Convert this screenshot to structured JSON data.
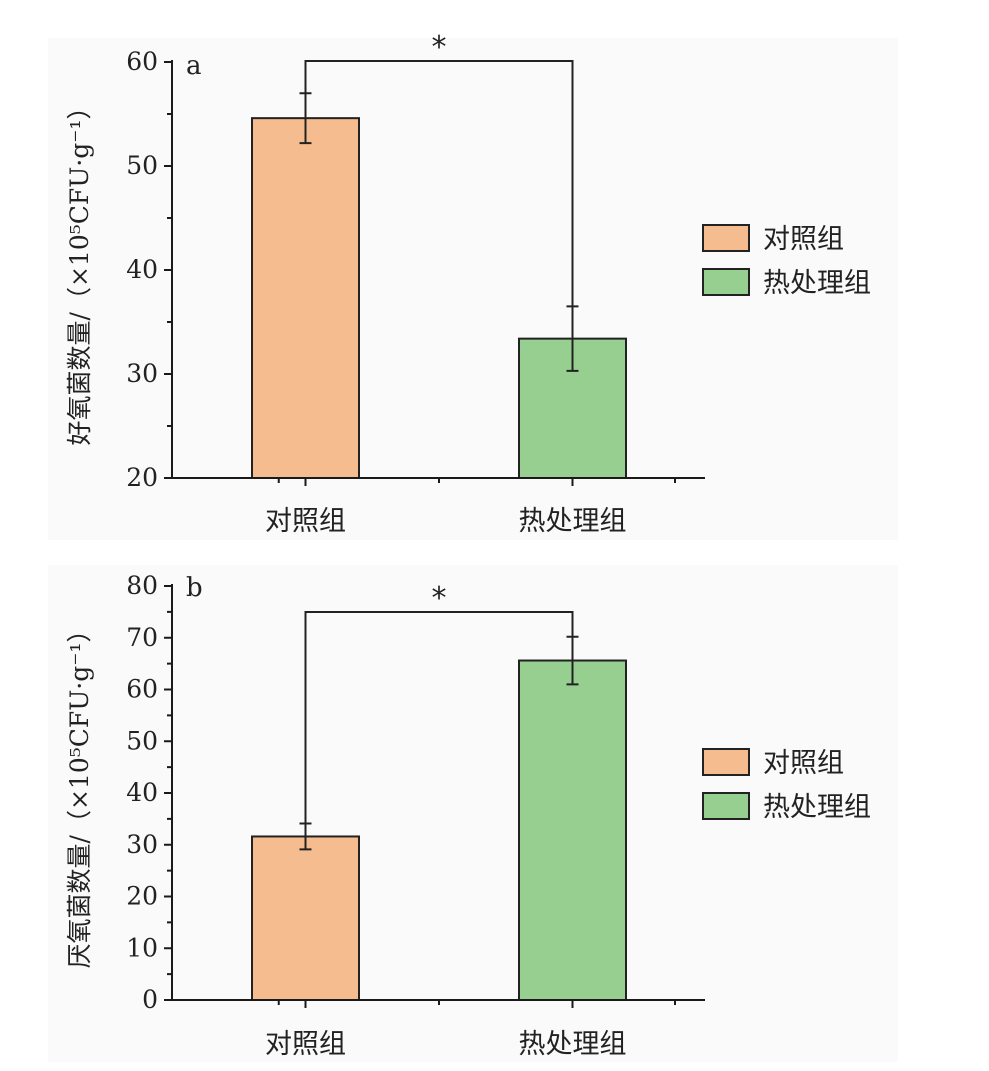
{
  "chart_data": [
    {
      "type": "bar",
      "panel_label": "a",
      "categories": [
        "对照组",
        "热处理组"
      ],
      "values": [
        54.6,
        33.4
      ],
      "errors": [
        2.4,
        3.1
      ],
      "ylabel_main": "好氧菌数量",
      "ylabel_unit": "/（×10⁵CFU·g⁻¹）",
      "ylim": [
        20,
        60
      ],
      "yticks": [
        20,
        30,
        40,
        50,
        60
      ],
      "significance": "*",
      "legend_position": "right",
      "legend": [
        "对照组",
        "热处理组"
      ]
    },
    {
      "type": "bar",
      "panel_label": "b",
      "categories": [
        "对照组",
        "热处理组"
      ],
      "values": [
        31.6,
        65.6
      ],
      "errors": [
        2.5,
        4.6
      ],
      "ylabel_main": "厌氧菌数量",
      "ylabel_unit": "/（×10⁵CFU·g⁻¹）",
      "ylim": [
        0,
        80
      ],
      "yticks": [
        0,
        10,
        20,
        30,
        40,
        50,
        60,
        70,
        80
      ],
      "significance": "*",
      "legend_position": "right",
      "legend": [
        "对照组",
        "热处理组"
      ]
    }
  ],
  "colors": {
    "control": "#f5bd8f",
    "heat": "#97cf91"
  }
}
